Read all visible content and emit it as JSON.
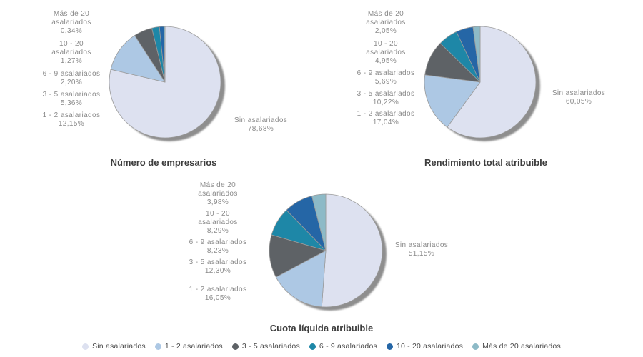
{
  "page": {
    "background": "#ffffff"
  },
  "palette": {
    "sin_asalariados": "#dde1f0",
    "asal_1_2": "#adc8e4",
    "asal_3_5": "#5e6266",
    "asal_6_9": "#1e87a7",
    "asal_10_20": "#2566a6",
    "asal_mas_20": "#8dbac7",
    "shadow": "#8e8e8e",
    "slice_stroke": "#9b9b9b",
    "label_text": "#8a8a8a",
    "title_text": "#3d3d3d",
    "legend_text": "#4a4a4a"
  },
  "chart_data": [
    {
      "type": "pie",
      "title": "Número de empresarios",
      "slices": [
        {
          "label": "Sin asalariados",
          "lines": [
            "Sin asalariados"
          ],
          "value": 78.68,
          "display": "78,68%",
          "color": "#dde1f0"
        },
        {
          "label": "1 - 2 asalariados",
          "lines": [
            "1 - 2 asalariados"
          ],
          "value": 12.15,
          "display": "12,15%",
          "color": "#adc8e4"
        },
        {
          "label": "3 - 5 asalariados",
          "lines": [
            "3 - 5 asalariados"
          ],
          "value": 5.36,
          "display": "5,36%",
          "color": "#5e6266"
        },
        {
          "label": "6 - 9 asalariados",
          "lines": [
            "6 - 9 asalariados"
          ],
          "value": 2.2,
          "display": "2,20%",
          "color": "#1e87a7"
        },
        {
          "label": "10 - 20 asalariados",
          "lines": [
            "10 - 20",
            "asalariados"
          ],
          "value": 1.27,
          "display": "1,27%",
          "color": "#2566a6"
        },
        {
          "label": "Más de 20 asalariados",
          "lines": [
            "Más de 20",
            "asalariados"
          ],
          "value": 0.34,
          "display": "0,34%",
          "color": "#8dbac7"
        }
      ]
    },
    {
      "type": "pie",
      "title": "Rendimiento total atribuible",
      "slices": [
        {
          "label": "Sin asalariados",
          "lines": [
            "Sin asalariados"
          ],
          "value": 60.05,
          "display": "60,05%",
          "color": "#dde1f0"
        },
        {
          "label": "1 - 2 asalariados",
          "lines": [
            "1 - 2 asalariados"
          ],
          "value": 17.04,
          "display": "17,04%",
          "color": "#adc8e4"
        },
        {
          "label": "3 - 5 asalariados",
          "lines": [
            "3 - 5 asalariados"
          ],
          "value": 10.22,
          "display": "10,22%",
          "color": "#5e6266"
        },
        {
          "label": "6 - 9 asalariados",
          "lines": [
            "6 - 9 asalariados"
          ],
          "value": 5.69,
          "display": "5,69%",
          "color": "#1e87a7"
        },
        {
          "label": "10 - 20 asalariados",
          "lines": [
            "10 - 20",
            "asalariados"
          ],
          "value": 4.95,
          "display": "4,95%",
          "color": "#2566a6"
        },
        {
          "label": "Más de 20 asalariados",
          "lines": [
            "Más de 20",
            "asalariados"
          ],
          "value": 2.05,
          "display": "2,05%",
          "color": "#8dbac7"
        }
      ]
    },
    {
      "type": "pie",
      "title": "Cuota líquida atribuible",
      "slices": [
        {
          "label": "Sin asalariados",
          "lines": [
            "Sin asalariados"
          ],
          "value": 51.15,
          "display": "51,15%",
          "color": "#dde1f0"
        },
        {
          "label": "1 - 2 asalariados",
          "lines": [
            "1 - 2 asalariados"
          ],
          "value": 16.05,
          "display": "16,05%",
          "color": "#adc8e4"
        },
        {
          "label": "3 - 5 asalariados",
          "lines": [
            "3 - 5 asalariados"
          ],
          "value": 12.3,
          "display": "12,30%",
          "color": "#5e6266"
        },
        {
          "label": "6 - 9 asalariados",
          "lines": [
            "6 - 9 asalariados"
          ],
          "value": 8.23,
          "display": "8,23%",
          "color": "#1e87a7"
        },
        {
          "label": "10 - 20 asalariados",
          "lines": [
            "10 - 20",
            "asalariados"
          ],
          "value": 8.29,
          "display": "8,29%",
          "color": "#2566a6"
        },
        {
          "label": "Más de 20 asalariados",
          "lines": [
            "Más de 20",
            "asalariados"
          ],
          "value": 3.98,
          "display": "3,98%",
          "color": "#8dbac7"
        }
      ]
    }
  ],
  "legend": {
    "items": [
      {
        "label": "Sin asalariados",
        "color": "#dde1f0"
      },
      {
        "label": "1 - 2 asalariados",
        "color": "#adc8e4"
      },
      {
        "label": "3 - 5 asalariados",
        "color": "#5e6266"
      },
      {
        "label": "6 - 9 asalariados",
        "color": "#1e87a7"
      },
      {
        "label": "10 - 20 asalariados",
        "color": "#2566a6"
      },
      {
        "label": "Más de 20 asalariados",
        "color": "#8dbac7"
      }
    ]
  }
}
